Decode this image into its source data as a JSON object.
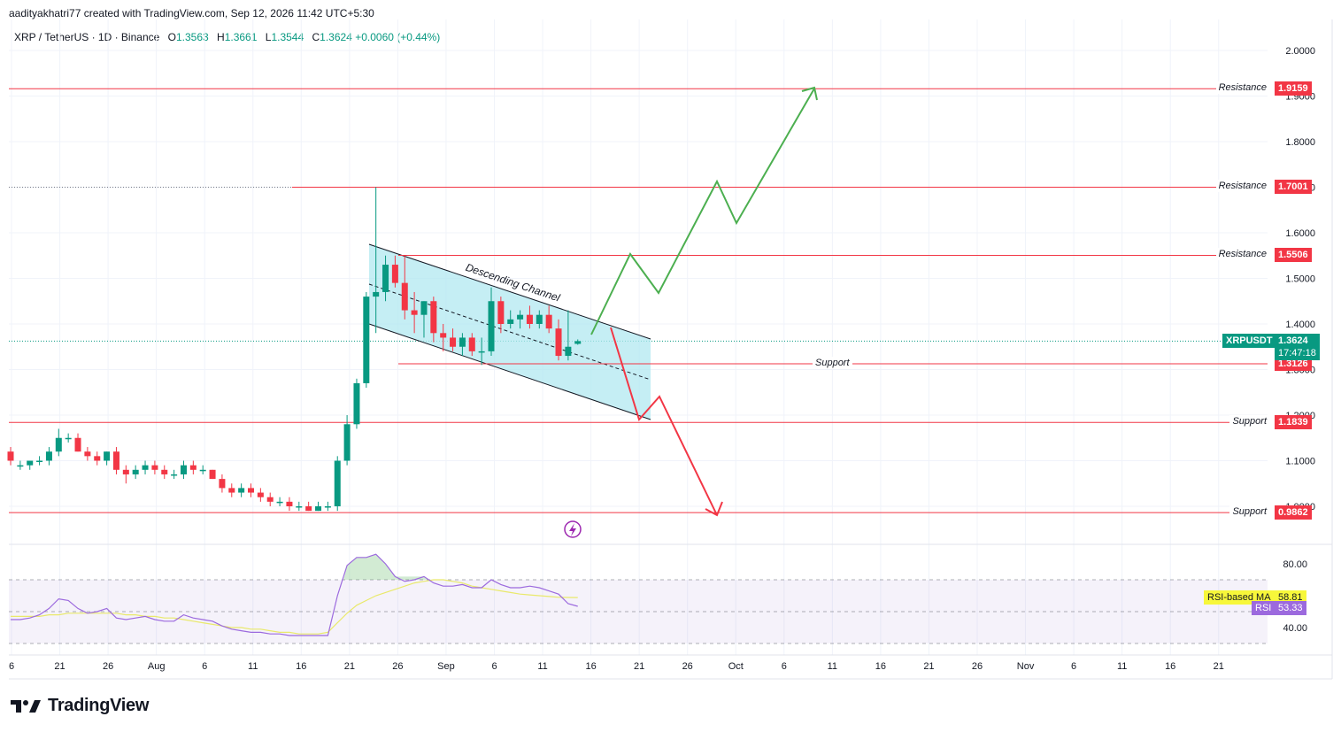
{
  "header": {
    "attribution": "aadityakhatri77 created with TradingView.com, Sep 12, 2026 11:42 UTC+5:30"
  },
  "symbol": {
    "name": "XRP / TetherUS · 1D · Binance",
    "open_label": "O",
    "open": "1.3563",
    "high_label": "H",
    "high": "1.3661",
    "low_label": "L",
    "low": "1.3544",
    "close_label": "C",
    "close": "1.3624",
    "change": "+0.0060 (+0.44%)"
  },
  "price_axis": {
    "ticks": [
      "2.0000",
      "1.9000",
      "1.8000",
      "1.7000",
      "1.6000",
      "1.5000",
      "1.4000",
      "1.3000",
      "1.2000",
      "1.1000",
      "1.0000"
    ]
  },
  "levels": [
    {
      "label": "Resistance",
      "value": "1.9159",
      "price": 1.9159,
      "type": "resistance"
    },
    {
      "label": "Resistance",
      "value": "1.7001",
      "price": 1.7001,
      "type": "resistance"
    },
    {
      "label": "Resistance",
      "value": "1.5506",
      "price": 1.5506,
      "type": "resistance"
    },
    {
      "label": "Support",
      "value": "1.3126",
      "price": 1.3126,
      "type": "support"
    },
    {
      "label": "Support",
      "value": "1.1839",
      "price": 1.1839,
      "type": "support"
    },
    {
      "label": "Support",
      "value": "0.9862",
      "price": 0.9862,
      "type": "support"
    }
  ],
  "current_price": {
    "symbol": "XRPUSDT",
    "value": "1.3624",
    "countdown": "17:47:18"
  },
  "annotations": {
    "channel_label": "Descending Channel"
  },
  "rsi": {
    "ma_label": "RSI-based MA",
    "ma_value": "58.81",
    "rsi_label": "RSI",
    "rsi_value": "53.33",
    "ticks": [
      "80.00",
      "40.00"
    ]
  },
  "time_axis": {
    "labels": [
      "6",
      "21",
      "26",
      "Aug",
      "6",
      "11",
      "16",
      "21",
      "26",
      "Sep",
      "6",
      "11",
      "16",
      "21",
      "26",
      "Oct",
      "6",
      "11",
      "16",
      "21",
      "26",
      "Nov",
      "6",
      "11",
      "16",
      "21"
    ]
  },
  "footer": {
    "brand": "TradingView"
  },
  "colors": {
    "up": "#089981",
    "down": "#f23645",
    "level": "#f23645",
    "channel_fill": "#b2e8f0",
    "arrow_up": "#4caf50",
    "arrow_down": "#f23645",
    "rsi_line": "#9c6ade",
    "rsi_ma": "#e9e96b"
  },
  "chart_data": {
    "type": "candlestick",
    "title": "XRP / TetherUS · 1D · Binance",
    "ylim": [
      0.94,
      2.05
    ],
    "candles": [
      {
        "o": 1.12,
        "h": 1.13,
        "l": 1.09,
        "c": 1.1
      },
      {
        "o": 1.09,
        "h": 1.1,
        "l": 1.08,
        "c": 1.09
      },
      {
        "o": 1.09,
        "h": 1.1,
        "l": 1.08,
        "c": 1.1
      },
      {
        "o": 1.1,
        "h": 1.11,
        "l": 1.09,
        "c": 1.1
      },
      {
        "o": 1.1,
        "h": 1.13,
        "l": 1.09,
        "c": 1.12
      },
      {
        "o": 1.12,
        "h": 1.17,
        "l": 1.11,
        "c": 1.15
      },
      {
        "o": 1.15,
        "h": 1.16,
        "l": 1.14,
        "c": 1.15
      },
      {
        "o": 1.15,
        "h": 1.16,
        "l": 1.12,
        "c": 1.12
      },
      {
        "o": 1.12,
        "h": 1.13,
        "l": 1.1,
        "c": 1.11
      },
      {
        "o": 1.11,
        "h": 1.12,
        "l": 1.09,
        "c": 1.1
      },
      {
        "o": 1.1,
        "h": 1.12,
        "l": 1.09,
        "c": 1.12
      },
      {
        "o": 1.12,
        "h": 1.13,
        "l": 1.07,
        "c": 1.08
      },
      {
        "o": 1.08,
        "h": 1.09,
        "l": 1.05,
        "c": 1.07
      },
      {
        "o": 1.07,
        "h": 1.09,
        "l": 1.06,
        "c": 1.08
      },
      {
        "o": 1.08,
        "h": 1.1,
        "l": 1.07,
        "c": 1.09
      },
      {
        "o": 1.09,
        "h": 1.1,
        "l": 1.07,
        "c": 1.08
      },
      {
        "o": 1.08,
        "h": 1.09,
        "l": 1.06,
        "c": 1.07
      },
      {
        "o": 1.07,
        "h": 1.08,
        "l": 1.06,
        "c": 1.07
      },
      {
        "o": 1.07,
        "h": 1.1,
        "l": 1.06,
        "c": 1.09
      },
      {
        "o": 1.09,
        "h": 1.1,
        "l": 1.07,
        "c": 1.08
      },
      {
        "o": 1.08,
        "h": 1.09,
        "l": 1.07,
        "c": 1.08
      },
      {
        "o": 1.08,
        "h": 1.08,
        "l": 1.06,
        "c": 1.06
      },
      {
        "o": 1.06,
        "h": 1.07,
        "l": 1.03,
        "c": 1.04
      },
      {
        "o": 1.04,
        "h": 1.05,
        "l": 1.02,
        "c": 1.03
      },
      {
        "o": 1.03,
        "h": 1.05,
        "l": 1.02,
        "c": 1.04
      },
      {
        "o": 1.04,
        "h": 1.05,
        "l": 1.02,
        "c": 1.03
      },
      {
        "o": 1.03,
        "h": 1.04,
        "l": 1.01,
        "c": 1.02
      },
      {
        "o": 1.02,
        "h": 1.03,
        "l": 1.0,
        "c": 1.01
      },
      {
        "o": 1.01,
        "h": 1.02,
        "l": 1.0,
        "c": 1.01
      },
      {
        "o": 1.01,
        "h": 1.02,
        "l": 0.99,
        "c": 1.0
      },
      {
        "o": 1.0,
        "h": 1.01,
        "l": 0.99,
        "c": 1.0
      },
      {
        "o": 1.0,
        "h": 1.01,
        "l": 0.99,
        "c": 0.99
      },
      {
        "o": 0.99,
        "h": 1.01,
        "l": 0.99,
        "c": 1.0
      },
      {
        "o": 1.0,
        "h": 1.01,
        "l": 0.99,
        "c": 1.0
      },
      {
        "o": 1.0,
        "h": 1.11,
        "l": 0.99,
        "c": 1.1
      },
      {
        "o": 1.1,
        "h": 1.2,
        "l": 1.09,
        "c": 1.18
      },
      {
        "o": 1.18,
        "h": 1.28,
        "l": 1.17,
        "c": 1.27
      },
      {
        "o": 1.27,
        "h": 1.47,
        "l": 1.26,
        "c": 1.46
      },
      {
        "o": 1.46,
        "h": 1.7,
        "l": 1.38,
        "c": 1.47
      },
      {
        "o": 1.47,
        "h": 1.55,
        "l": 1.45,
        "c": 1.53
      },
      {
        "o": 1.53,
        "h": 1.55,
        "l": 1.48,
        "c": 1.49
      },
      {
        "o": 1.49,
        "h": 1.55,
        "l": 1.41,
        "c": 1.43
      },
      {
        "o": 1.43,
        "h": 1.47,
        "l": 1.38,
        "c": 1.42
      },
      {
        "o": 1.42,
        "h": 1.45,
        "l": 1.37,
        "c": 1.45
      },
      {
        "o": 1.45,
        "h": 1.46,
        "l": 1.36,
        "c": 1.38
      },
      {
        "o": 1.38,
        "h": 1.4,
        "l": 1.34,
        "c": 1.37
      },
      {
        "o": 1.37,
        "h": 1.39,
        "l": 1.34,
        "c": 1.35
      },
      {
        "o": 1.35,
        "h": 1.38,
        "l": 1.33,
        "c": 1.37
      },
      {
        "o": 1.37,
        "h": 1.38,
        "l": 1.33,
        "c": 1.34
      },
      {
        "o": 1.34,
        "h": 1.37,
        "l": 1.31,
        "c": 1.34
      },
      {
        "o": 1.34,
        "h": 1.48,
        "l": 1.33,
        "c": 1.45
      },
      {
        "o": 1.45,
        "h": 1.46,
        "l": 1.38,
        "c": 1.4
      },
      {
        "o": 1.4,
        "h": 1.43,
        "l": 1.39,
        "c": 1.41
      },
      {
        "o": 1.41,
        "h": 1.43,
        "l": 1.39,
        "c": 1.42
      },
      {
        "o": 1.42,
        "h": 1.44,
        "l": 1.39,
        "c": 1.4
      },
      {
        "o": 1.4,
        "h": 1.43,
        "l": 1.39,
        "c": 1.42
      },
      {
        "o": 1.42,
        "h": 1.44,
        "l": 1.38,
        "c": 1.39
      },
      {
        "o": 1.39,
        "h": 1.41,
        "l": 1.32,
        "c": 1.33
      },
      {
        "o": 1.33,
        "h": 1.43,
        "l": 1.32,
        "c": 1.35
      },
      {
        "o": 1.3563,
        "h": 1.3661,
        "l": 1.3544,
        "c": 1.3624
      }
    ],
    "levels": [
      1.9159,
      1.7001,
      1.5506,
      1.3126,
      1.1839,
      0.9862
    ],
    "rsi_ylim": [
      20,
      95
    ],
    "rsi": [
      45,
      45,
      46,
      48,
      52,
      58,
      57,
      52,
      49,
      50,
      52,
      46,
      45,
      46,
      47,
      45,
      44,
      44,
      48,
      46,
      45,
      44,
      41,
      39,
      38,
      37,
      37,
      36,
      36,
      35,
      35,
      35,
      35,
      35,
      60,
      79,
      84,
      84,
      86,
      80,
      72,
      69,
      70,
      72,
      68,
      66,
      66,
      67,
      65,
      65,
      70,
      67,
      65,
      65,
      66,
      65,
      63,
      61,
      55,
      53.33
    ],
    "rsi_ma": [
      47,
      47,
      47,
      47,
      48,
      48,
      49,
      49,
      49,
      49,
      49,
      49,
      48,
      48,
      47,
      47,
      46,
      46,
      45,
      44,
      43,
      42,
      41,
      40,
      40,
      39,
      39,
      38,
      37,
      37,
      36,
      36,
      36,
      37,
      43,
      49,
      54,
      57,
      60,
      62,
      64,
      66,
      68,
      69,
      70,
      70,
      69,
      68,
      66,
      65,
      64,
      63,
      62,
      61,
      60.5,
      60,
      59.5,
      59,
      58.9,
      58.81
    ]
  }
}
